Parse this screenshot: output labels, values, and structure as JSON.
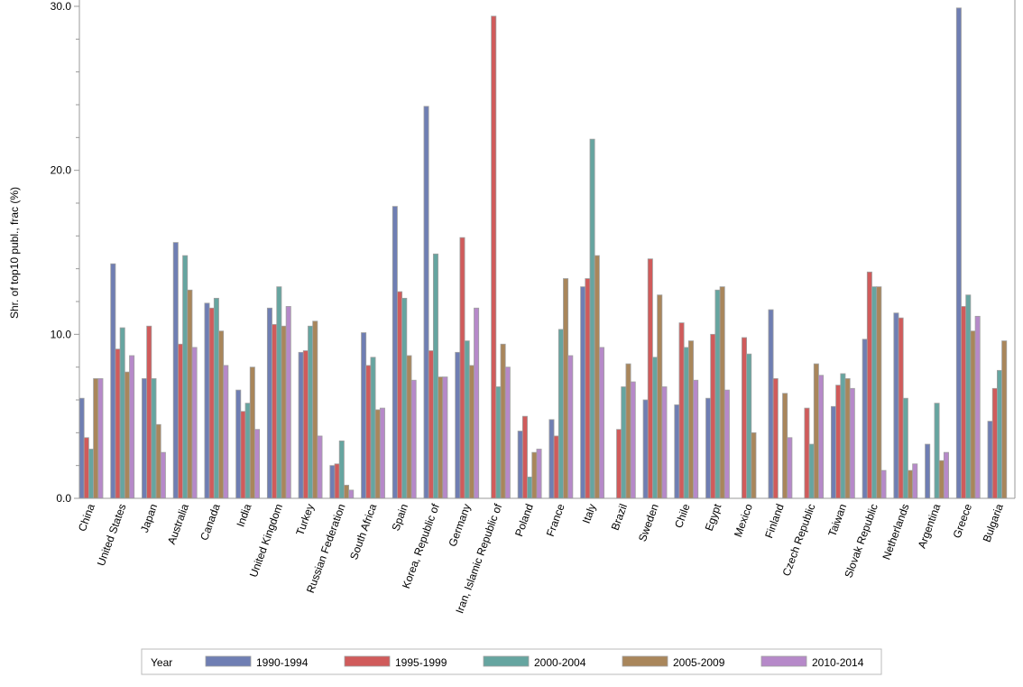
{
  "chart_data": {
    "type": "bar",
    "title": "",
    "xlabel": "",
    "ylabel": "Shr. of top10 publ., frac (%)",
    "ylim": [
      0,
      30
    ],
    "yticks": [
      "0.0",
      "10.0",
      "20.0",
      "30.0"
    ],
    "grid": false,
    "legend": {
      "title": "Year",
      "placement": "bottom"
    },
    "categories": [
      "China",
      "United States",
      "Japan",
      "Australia",
      "Canada",
      "India",
      "United Kingdom",
      "Turkey",
      "Russian Federation",
      "South Africa",
      "Spain",
      "Korea, Republic of",
      "Germany",
      "Iran, Islamic Republic of",
      "Poland",
      "France",
      "Italy",
      "Brazil",
      "Sweden",
      "Chile",
      "Egypt",
      "Mexico",
      "Finland",
      "Czech Republic",
      "Taiwan",
      "Slovak Republic",
      "Netherlands",
      "Argentina",
      "Greece",
      "Bulgaria"
    ],
    "series": [
      {
        "name": "1990-1994",
        "color": "#6f7eb3",
        "values": [
          6.1,
          14.3,
          7.3,
          15.6,
          11.9,
          6.6,
          11.6,
          8.9,
          2.0,
          10.1,
          17.8,
          23.9,
          8.9,
          null,
          4.1,
          4.8,
          12.9,
          null,
          6.0,
          5.7,
          6.1,
          null,
          11.5,
          null,
          5.6,
          9.7,
          11.3,
          3.3,
          29.9,
          4.7
        ]
      },
      {
        "name": "1995-1999",
        "color": "#d05b5b",
        "values": [
          3.7,
          9.1,
          10.5,
          9.4,
          11.6,
          5.3,
          10.6,
          9.0,
          2.1,
          8.1,
          12.6,
          9.0,
          15.9,
          29.4,
          5.0,
          3.8,
          13.4,
          4.2,
          14.6,
          10.7,
          10.0,
          9.8,
          7.3,
          5.5,
          6.9,
          13.8,
          11.0,
          null,
          11.7,
          6.7
        ]
      },
      {
        "name": "2000-2004",
        "color": "#66a5a0",
        "values": [
          3.0,
          10.4,
          7.3,
          14.8,
          12.2,
          5.8,
          12.9,
          10.5,
          3.5,
          8.6,
          12.2,
          14.9,
          9.6,
          6.8,
          1.3,
          10.3,
          21.9,
          6.8,
          8.6,
          9.2,
          12.7,
          8.8,
          null,
          3.3,
          7.6,
          12.9,
          6.1,
          5.8,
          12.4,
          7.8
        ]
      },
      {
        "name": "2005-2009",
        "color": "#a9865b",
        "values": [
          7.3,
          7.7,
          4.5,
          12.7,
          10.2,
          8.0,
          10.5,
          10.8,
          0.8,
          5.4,
          8.7,
          7.4,
          8.1,
          9.4,
          2.8,
          13.4,
          14.8,
          8.2,
          12.4,
          9.6,
          12.9,
          4.0,
          6.4,
          8.2,
          7.3,
          12.9,
          1.7,
          2.3,
          10.2,
          9.6
        ]
      },
      {
        "name": "2010-2014",
        "color": "#b689c9",
        "values": [
          7.3,
          8.7,
          2.8,
          9.2,
          8.1,
          4.2,
          11.7,
          3.8,
          0.5,
          5.5,
          7.2,
          7.4,
          11.6,
          8.0,
          3.0,
          8.7,
          9.2,
          7.1,
          6.8,
          7.2,
          6.6,
          null,
          3.7,
          7.5,
          6.7,
          1.7,
          2.1,
          2.8,
          11.1,
          null
        ]
      }
    ]
  }
}
